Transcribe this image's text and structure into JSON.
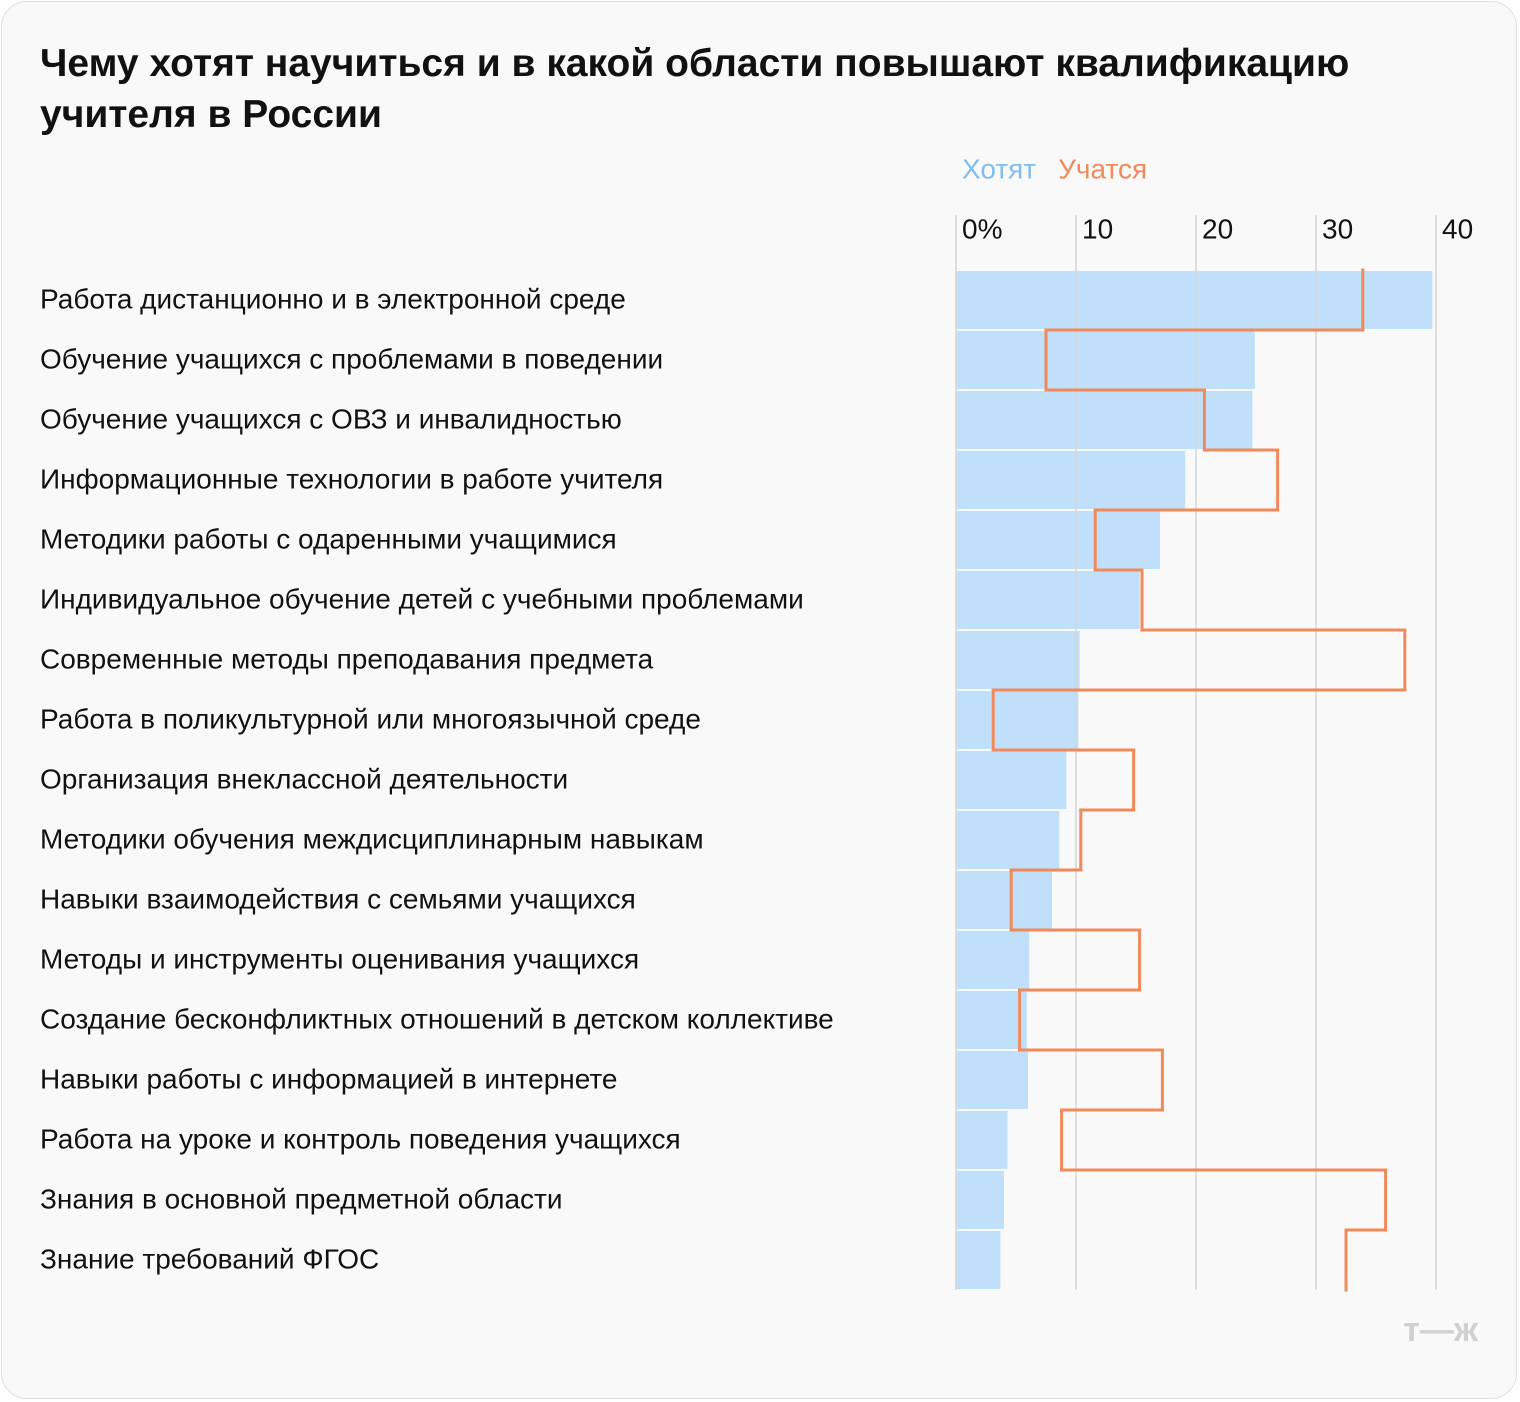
{
  "chart_data": {
    "type": "bar",
    "orientation": "horizontal",
    "title": "Чему хотят научиться и в какой области повышают квалификацию учителя в России",
    "logo": "т—ж",
    "categories": [
      "Работа дистанционно и в электронной среде",
      "Обучение учащихся с проблемами в поведении",
      "Обучение учащихся с ОВЗ и инвалидностью",
      "Информационные технологии в работе учителя",
      "Методики работы с одаренными учащимися",
      "Индивидуальное обучение детей с учебными проблемами",
      "Современные методы преподавания предмета",
      "Работа в поликультурной или многоязычной среде",
      "Организация внеклассной деятельности",
      "Методики обучения междисциплинарным навыкам",
      "Навыки взаимодействия с семьями учащихся",
      "Методы и инструменты оценивания учащихся",
      "Создание бесконфликтных отношений в детском коллективе",
      "Навыки работы с информацией в интернете",
      "Работа на уроке и контроль поведения учащихся",
      "Знания в основной предметной области",
      "Знание требований ФГОС"
    ],
    "series": [
      {
        "name": "Хотят",
        "color": "#bfdffa",
        "legend_color": "#7fbdf3",
        "style": "bar",
        "values": [
          39.7,
          24.9,
          24.7,
          19.1,
          17.0,
          15.3,
          10.3,
          10.2,
          9.2,
          8.6,
          8.0,
          6.1,
          5.9,
          6.0,
          4.3,
          4.0,
          3.7
        ]
      },
      {
        "name": "Учатся",
        "color": "#f08a5b",
        "style": "step",
        "values": [
          33.9,
          7.5,
          20.7,
          26.8,
          11.6,
          15.5,
          37.4,
          3.1,
          14.8,
          10.4,
          4.6,
          15.3,
          5.3,
          17.2,
          8.8,
          35.8,
          32.5
        ]
      }
    ],
    "xlim": [
      0,
      40
    ],
    "xticks": [
      {
        "value": 0,
        "label": "0%"
      },
      10,
      20,
      30,
      40
    ],
    "grid": true
  }
}
